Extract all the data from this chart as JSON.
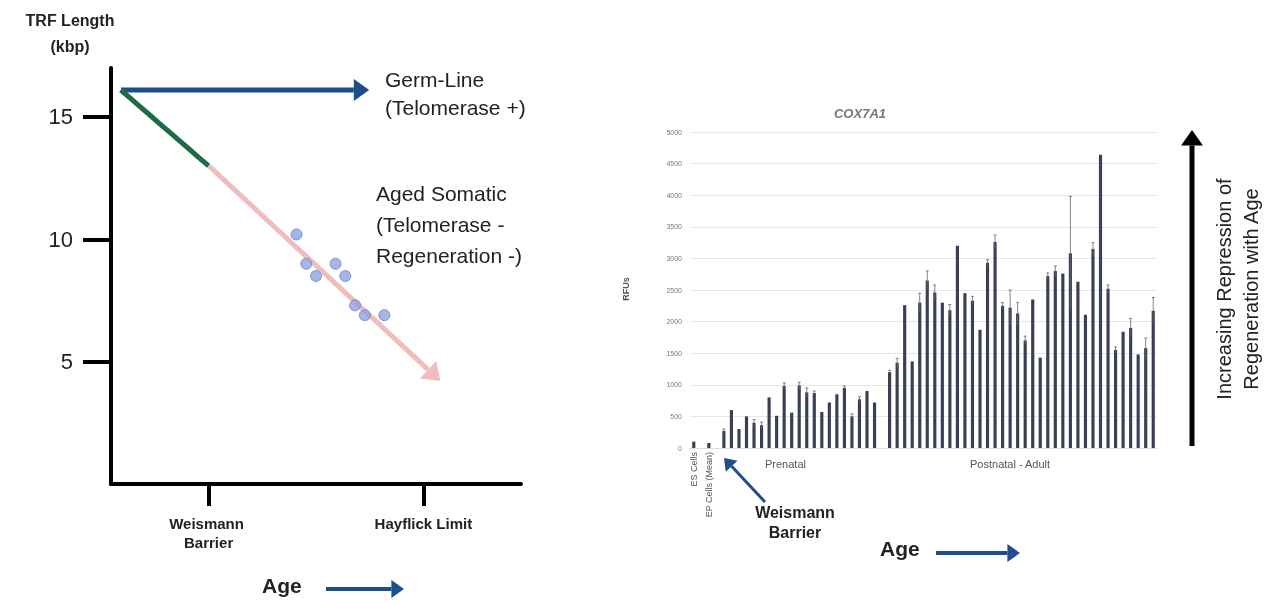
{
  "chart_data": [
    {
      "type": "line",
      "ylabel": "TRF Length (kbp)",
      "xlabel": "Age",
      "annotations": [
        "Germ-Line (Telomerase +)",
        "Aged Somatic (Telomerase - Regeneration -)"
      ],
      "categories": [
        null,
        null,
        null,
        null,
        null,
        null,
        null,
        null,
        null,
        null,
        "Weismann Barrier",
        null,
        null,
        null,
        null,
        null,
        null,
        null,
        null,
        null,
        null,
        null,
        null,
        null,
        null,
        null,
        null,
        null,
        null,
        null,
        null,
        null,
        "Hayflick Limit",
        null,
        null,
        null,
        null,
        null,
        null,
        null,
        null,
        null,
        null
      ],
      "series": [
        {
          "type": "line",
          "color": "#1e6b45",
          "values": [
            null,
            16.1,
            15.76,
            15.41,
            15.07,
            14.72,
            14.38,
            14.03,
            13.69,
            13.34,
            13.0,
            null,
            null,
            null,
            null,
            null,
            null,
            null,
            null,
            null,
            null,
            null,
            null,
            null,
            null,
            null,
            null,
            null,
            null,
            null,
            null,
            null,
            null,
            null,
            null,
            null,
            null,
            null,
            null,
            null,
            null,
            null,
            null
          ]
        },
        {
          "type": "scatter",
          "color": "#8fa3e0",
          "marker": "circle",
          "values": [
            null,
            null,
            null,
            null,
            null,
            null,
            null,
            null,
            null,
            null,
            null,
            null,
            null,
            null,
            null,
            null,
            null,
            null,
            null,
            10.2,
            9.0,
            8.5,
            null,
            9.0,
            8.5,
            7.3,
            6.9,
            null,
            6.9,
            null,
            null,
            null,
            null,
            null,
            null,
            null,
            null,
            null,
            null,
            null,
            null,
            null,
            null
          ]
        }
      ],
      "ylim": [
        0,
        17
      ],
      "yticks": [
        5,
        10,
        15
      ],
      "grid": false
    },
    {
      "type": "bar",
      "title": "COX7A1",
      "ylabel": "RFUs",
      "xlabel": "Age",
      "annotations": [
        "Prenatal",
        "Postnatal - Adult",
        "Weismann Barrier",
        "Increasing Repression of Regeneration with Age"
      ],
      "categories": [
        "ES Cells",
        null,
        "EP Cells (Mean)",
        null,
        null,
        null,
        null,
        null,
        null,
        null,
        null,
        null,
        null,
        null,
        null,
        null,
        null,
        null,
        null,
        null,
        null,
        null,
        null,
        null,
        null,
        null,
        null,
        null,
        null,
        null,
        null,
        null,
        null,
        null,
        null,
        null,
        null,
        null,
        null,
        null,
        null,
        null,
        null,
        null,
        null,
        null,
        null,
        null,
        null,
        null,
        null,
        null,
        null,
        null,
        null,
        null,
        null,
        null,
        null,
        null,
        null,
        null
      ],
      "values": [
        100,
        null,
        80,
        null,
        270,
        600,
        300,
        500,
        400,
        360,
        800,
        510,
        980,
        560,
        990,
        880,
        870,
        570,
        720,
        850,
        950,
        500,
        770,
        900,
        720,
        null,
        1200,
        1350,
        2260,
        1370,
        2300,
        2650,
        2460,
        2300,
        2180,
        3200,
        2450,
        2330,
        1870,
        2930,
        3260,
        2250,
        2220,
        2130,
        1700,
        2350,
        1430,
        2720,
        2800,
        2760,
        3080,
        2630,
        2110,
        3150,
        4640,
        2520,
        1550,
        1840,
        1900,
        1480,
        1580,
        2170
      ],
      "errors": [
        null,
        null,
        null,
        null,
        30,
        null,
        null,
        null,
        50,
        50,
        null,
        null,
        50,
        null,
        50,
        70,
        30,
        null,
        null,
        null,
        30,
        40,
        40,
        null,
        null,
        null,
        30,
        70,
        null,
        null,
        150,
        150,
        120,
        null,
        90,
        null,
        null,
        70,
        null,
        50,
        110,
        50,
        280,
        175,
        70,
        null,
        null,
        50,
        80,
        null,
        900,
        null,
        null,
        100,
        null,
        60,
        50,
        null,
        150,
        null,
        160,
        210
      ],
      "color": "#3a3f55",
      "ylim": [
        0,
        5000
      ],
      "yticks": [
        0,
        500,
        1000,
        1500,
        2000,
        2500,
        3000,
        3500,
        4000,
        4500,
        5000
      ],
      "grid": "y"
    }
  ]
}
